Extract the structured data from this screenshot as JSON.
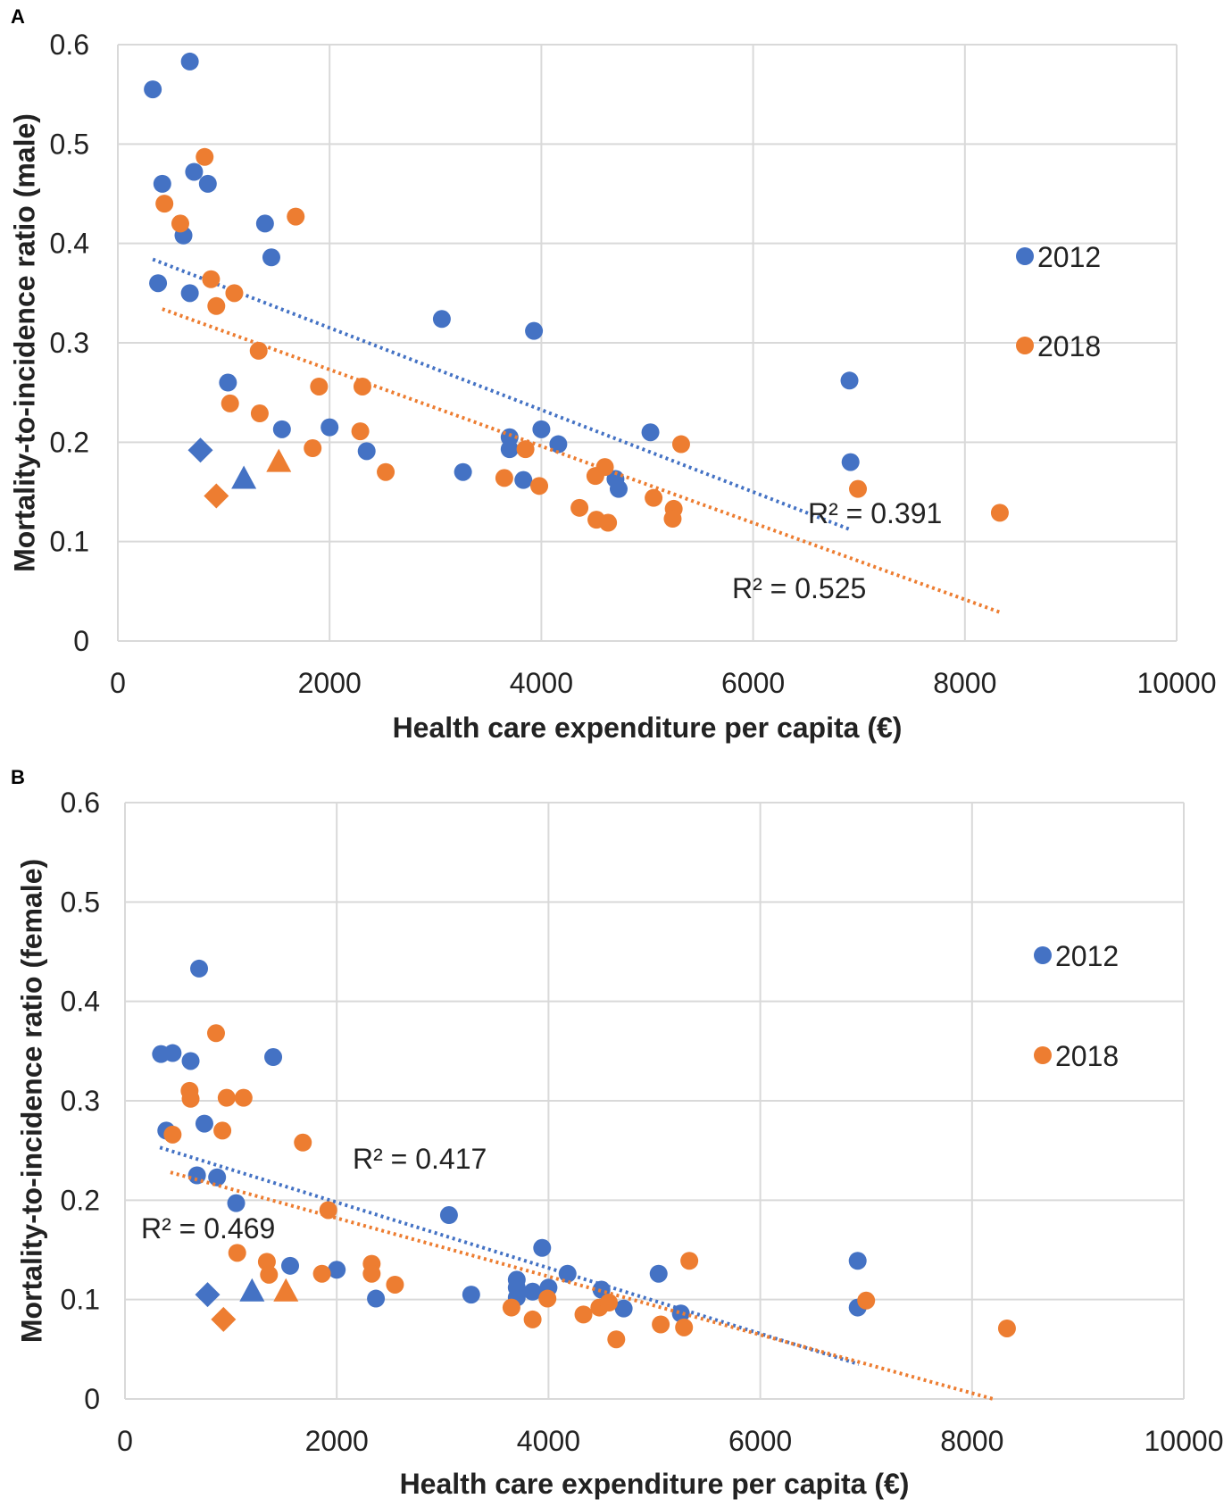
{
  "colors": {
    "series_2012": "#4472c4",
    "series_2018": "#ed7d31",
    "grid": "#d9d9d9",
    "text": "#222222"
  },
  "chart_data": [
    {
      "panel_label": "A",
      "type": "scatter",
      "xlabel": "Health care expenditure per capita (€)",
      "ylabel": "Mortality-to-incidence ratio (male)",
      "xlim": [
        0,
        10000
      ],
      "ylim": [
        0,
        0.6
      ],
      "x_ticks": [
        0,
        2000,
        4000,
        6000,
        8000,
        10000
      ],
      "y_ticks": [
        0,
        0.1,
        0.2,
        0.3,
        0.4,
        0.5,
        0.6
      ],
      "grid": true,
      "legend_position": "right",
      "series": [
        {
          "name": "2012",
          "color": "#4472c4",
          "points": [
            [
              330,
              0.555
            ],
            [
              680,
              0.583
            ],
            [
              420,
              0.46
            ],
            [
              720,
              0.472
            ],
            [
              850,
              0.46
            ],
            [
              620,
              0.408
            ],
            [
              380,
              0.36
            ],
            [
              680,
              0.35
            ],
            [
              1390,
              0.42
            ],
            [
              1450,
              0.386
            ],
            [
              1040,
              0.26
            ],
            [
              1550,
              0.213
            ],
            [
              2000,
              0.215
            ],
            [
              2350,
              0.191
            ],
            [
              3060,
              0.324
            ],
            [
              3260,
              0.17
            ],
            [
              3700,
              0.205
            ],
            [
              3700,
              0.193
            ],
            [
              3830,
              0.162
            ],
            [
              3930,
              0.312
            ],
            [
              4000,
              0.213
            ],
            [
              4160,
              0.198
            ],
            [
              4700,
              0.163
            ],
            [
              4730,
              0.153
            ],
            [
              5030,
              0.21
            ],
            [
              6910,
              0.262
            ],
            [
              6920,
              0.18
            ]
          ],
          "markers": [
            {
              "x": 780,
              "y": 0.192,
              "shape": "diamond"
            },
            {
              "x": 1190,
              "y": 0.163,
              "shape": "triangle"
            }
          ],
          "trend": {
            "x": [
              330,
              6920
            ],
            "y": [
              0.384,
              0.112
            ]
          },
          "r2_label": "R² = 0.391"
        },
        {
          "name": "2018",
          "color": "#ed7d31",
          "points": [
            [
              440,
              0.44
            ],
            [
              590,
              0.42
            ],
            [
              820,
              0.487
            ],
            [
              1680,
              0.427
            ],
            [
              880,
              0.364
            ],
            [
              930,
              0.337
            ],
            [
              1100,
              0.35
            ],
            [
              1330,
              0.292
            ],
            [
              1060,
              0.239
            ],
            [
              1340,
              0.229
            ],
            [
              1900,
              0.256
            ],
            [
              2310,
              0.256
            ],
            [
              1840,
              0.194
            ],
            [
              2290,
              0.211
            ],
            [
              2530,
              0.17
            ],
            [
              3650,
              0.164
            ],
            [
              3980,
              0.156
            ],
            [
              3850,
              0.193
            ],
            [
              4360,
              0.134
            ],
            [
              4510,
              0.166
            ],
            [
              4600,
              0.175
            ],
            [
              4520,
              0.122
            ],
            [
              4630,
              0.119
            ],
            [
              5060,
              0.144
            ],
            [
              5250,
              0.133
            ],
            [
              5240,
              0.123
            ],
            [
              5320,
              0.198
            ],
            [
              6990,
              0.153
            ],
            [
              8330,
              0.129
            ]
          ],
          "markers": [
            {
              "x": 930,
              "y": 0.146,
              "shape": "diamond"
            },
            {
              "x": 1520,
              "y": 0.18,
              "shape": "triangle"
            }
          ],
          "trend": {
            "x": [
              420,
              8330
            ],
            "y": [
              0.334,
              0.029
            ]
          },
          "r2_label": "R² = 0.525"
        }
      ]
    },
    {
      "panel_label": "B",
      "type": "scatter",
      "xlabel": "Health care expenditure per capita (€)",
      "ylabel": "Mortality-to-incidence ratio (female)",
      "xlim": [
        0,
        10000
      ],
      "ylim": [
        0,
        0.6
      ],
      "x_ticks": [
        0,
        2000,
        4000,
        6000,
        8000,
        10000
      ],
      "y_ticks": [
        0,
        0.1,
        0.2,
        0.3,
        0.4,
        0.5,
        0.6
      ],
      "grid": true,
      "legend_position": "right",
      "series": [
        {
          "name": "2012",
          "color": "#4472c4",
          "points": [
            [
              340,
              0.347
            ],
            [
              450,
              0.348
            ],
            [
              620,
              0.34
            ],
            [
              700,
              0.433
            ],
            [
              390,
              0.27
            ],
            [
              750,
              0.277
            ],
            [
              680,
              0.225
            ],
            [
              870,
              0.223
            ],
            [
              1050,
              0.197
            ],
            [
              1400,
              0.344
            ],
            [
              1560,
              0.134
            ],
            [
              2000,
              0.13
            ],
            [
              2370,
              0.101
            ],
            [
              3060,
              0.185
            ],
            [
              3270,
              0.105
            ],
            [
              3700,
              0.12
            ],
            [
              3700,
              0.112
            ],
            [
              3700,
              0.102
            ],
            [
              3850,
              0.108
            ],
            [
              3940,
              0.152
            ],
            [
              4000,
              0.112
            ],
            [
              4180,
              0.126
            ],
            [
              4500,
              0.11
            ],
            [
              4710,
              0.091
            ],
            [
              5040,
              0.126
            ],
            [
              5250,
              0.086
            ],
            [
              6920,
              0.139
            ],
            [
              6920,
              0.092
            ]
          ],
          "markers": [
            {
              "x": 780,
              "y": 0.105,
              "shape": "diamond"
            },
            {
              "x": 1200,
              "y": 0.108,
              "shape": "triangle"
            }
          ],
          "trend": {
            "x": [
              330,
              6930
            ],
            "y": [
              0.253,
              0.035
            ]
          },
          "r2_label": "R² = 0.417"
        },
        {
          "name": "2018",
          "color": "#ed7d31",
          "points": [
            [
              450,
              0.266
            ],
            [
              610,
              0.31
            ],
            [
              620,
              0.302
            ],
            [
              860,
              0.368
            ],
            [
              920,
              0.27
            ],
            [
              960,
              0.303
            ],
            [
              1120,
              0.303
            ],
            [
              1680,
              0.258
            ],
            [
              1060,
              0.147
            ],
            [
              1340,
              0.138
            ],
            [
              1360,
              0.125
            ],
            [
              1920,
              0.19
            ],
            [
              1860,
              0.126
            ],
            [
              2330,
              0.136
            ],
            [
              2330,
              0.126
            ],
            [
              2550,
              0.115
            ],
            [
              3650,
              0.092
            ],
            [
              3850,
              0.08
            ],
            [
              3990,
              0.101
            ],
            [
              4330,
              0.085
            ],
            [
              4480,
              0.092
            ],
            [
              4570,
              0.097
            ],
            [
              4640,
              0.06
            ],
            [
              5060,
              0.075
            ],
            [
              5280,
              0.072
            ],
            [
              5330,
              0.139
            ],
            [
              7000,
              0.099
            ],
            [
              8330,
              0.071
            ]
          ],
          "markers": [
            {
              "x": 930,
              "y": 0.08,
              "shape": "diamond"
            },
            {
              "x": 1520,
              "y": 0.108,
              "shape": "triangle"
            }
          ],
          "trend": {
            "x": [
              430,
              8200
            ],
            "y": [
              0.228,
              0.0
            ]
          },
          "r2_label": "R² = 0.469"
        }
      ]
    }
  ]
}
